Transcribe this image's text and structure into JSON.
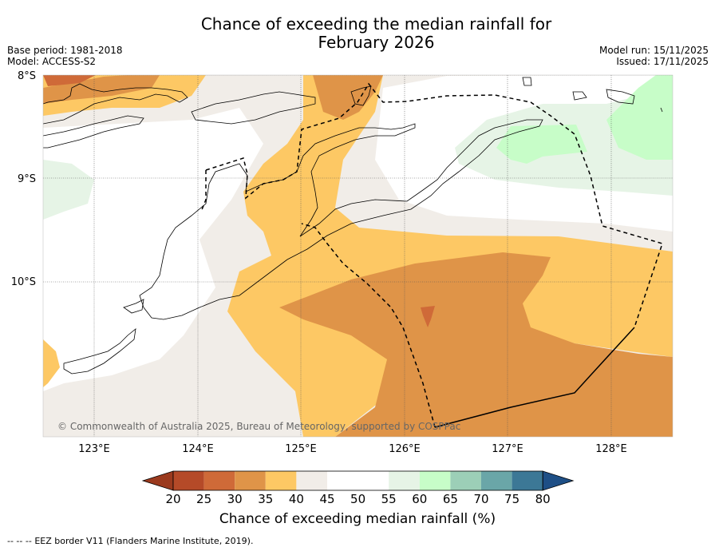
{
  "title_line1": "Chance of exceeding the median rainfall for",
  "title_line2": "February 2026",
  "base_period": "Base period: 1981-2018",
  "model": "Model: ACCESS-S2",
  "model_run": "Model run: 15/11/2025",
  "issued": "Issued: 17/11/2025",
  "copyright": "© Commonwealth of Australia 2025, Bureau of Meteorology, supported by COSPPac",
  "lat_labels": [
    "8°S",
    "9°S",
    "10°S"
  ],
  "lon_labels": [
    "123°E",
    "124°E",
    "125°E",
    "126°E",
    "127°E",
    "128°E"
  ],
  "colorbar": {
    "ticks": [
      "20",
      "25",
      "30",
      "35",
      "40",
      "45",
      "50",
      "55",
      "60",
      "65",
      "70",
      "75",
      "80"
    ],
    "colors": [
      "#9b3a1e",
      "#b54a28",
      "#cf6a38",
      "#df9448",
      "#fdc864",
      "#f1ede8",
      "#ffffff",
      "#ffffff",
      "#e6f4e6",
      "#c7fdc8",
      "#9ccfb7",
      "#6aa6a8",
      "#3c7896",
      "#1e4f86"
    ],
    "label": "Chance of exceeding median rainfall (%)"
  },
  "legend": {
    "eez_symbol": "--  --  --",
    "eez_text": "EEZ border V11 (Flanders Marine Institute, 2019)."
  }
}
